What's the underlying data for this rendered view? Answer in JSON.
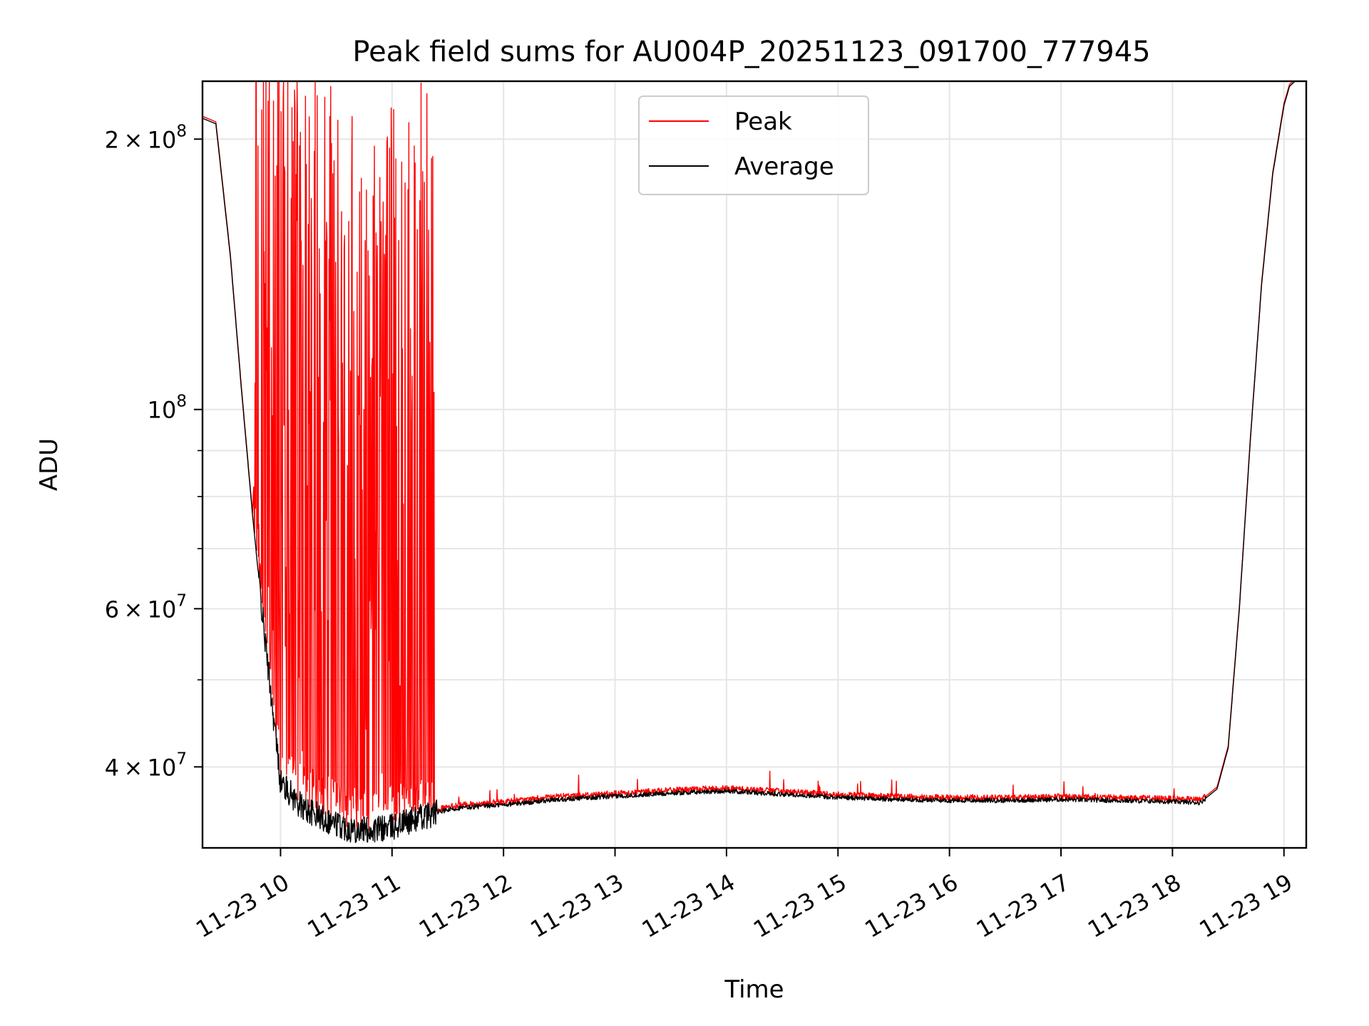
{
  "chart_data": {
    "type": "line",
    "title": "Peak field sums for AU004P_20251123_091700_777945",
    "xlabel": "Time",
    "ylabel": "ADU",
    "yscale": "log",
    "grid": true,
    "legend_position": "top-center",
    "xlim": [
      9.3,
      19.2
    ],
    "ylim": [
      32500000,
      232000000
    ],
    "x_ticks": [
      {
        "value": 10,
        "label": "11-23 10"
      },
      {
        "value": 11,
        "label": "11-23 11"
      },
      {
        "value": 12,
        "label": "11-23 12"
      },
      {
        "value": 13,
        "label": "11-23 13"
      },
      {
        "value": 14,
        "label": "11-23 14"
      },
      {
        "value": 15,
        "label": "11-23 15"
      },
      {
        "value": 16,
        "label": "11-23 16"
      },
      {
        "value": 17,
        "label": "11-23 17"
      },
      {
        "value": 18,
        "label": "11-23 18"
      },
      {
        "value": 19,
        "label": "11-23 19"
      }
    ],
    "y_major_ticks": [
      {
        "value": 40000000,
        "label_mantissa": "4",
        "label_exp": "7"
      },
      {
        "value": 60000000,
        "label_mantissa": "6",
        "label_exp": "7"
      },
      {
        "value": 100000000,
        "label_mantissa": "",
        "label_exp": "8"
      },
      {
        "value": 200000000,
        "label_mantissa": "2",
        "label_exp": "8"
      }
    ],
    "y_minor_ticks": [
      50000000,
      70000000,
      80000000,
      90000000
    ],
    "series": [
      {
        "name": "Peak",
        "color": "#ff0000",
        "x": [
          9.3,
          9.42,
          9.55,
          9.65,
          9.75,
          9.85,
          9.95,
          10.1,
          10.3,
          10.5,
          10.7,
          10.9,
          11.05,
          11.2,
          11.35,
          11.5,
          12.0,
          12.5,
          13.0,
          13.5,
          14.0,
          14.5,
          15.0,
          15.5,
          16.0,
          16.5,
          17.0,
          17.5,
          18.0,
          18.25,
          18.4,
          18.5,
          18.6,
          18.7,
          18.8,
          18.9,
          19.0,
          19.05,
          19.1
        ],
        "values": [
          212000000,
          209000000,
          150000000,
          108000000,
          78000000,
          58000000,
          48000000,
          225000000,
          230000000,
          232000000,
          232000000,
          232000000,
          230000000,
          231000000,
          195000000,
          36000000,
          36400000,
          36900000,
          37300000,
          37600000,
          37900000,
          37500000,
          37200000,
          37000000,
          36800000,
          37100000,
          37000000,
          36800000,
          36700000,
          36900000,
          38200000,
          43000000,
          62000000,
          95000000,
          140000000,
          185000000,
          220000000,
          230000000,
          232000000
        ]
      },
      {
        "name": "Average",
        "color": "#000000",
        "x": [
          9.3,
          9.42,
          9.55,
          9.65,
          9.75,
          9.85,
          9.95,
          10.0,
          10.2,
          10.4,
          10.6,
          10.8,
          11.0,
          11.2,
          11.4,
          11.6,
          12.0,
          12.5,
          13.0,
          13.5,
          14.0,
          14.5,
          15.0,
          15.5,
          16.0,
          16.5,
          17.0,
          17.5,
          18.0,
          18.25,
          18.4,
          18.5,
          18.6,
          18.7,
          18.8,
          18.9,
          19.0,
          19.05,
          19.1
        ],
        "values": [
          211000000,
          208000000,
          148000000,
          105000000,
          76000000,
          57000000,
          44000000,
          38500000,
          36000000,
          35000000,
          34200000,
          34000000,
          34300000,
          35000000,
          35600000,
          36000000,
          36300000,
          36800000,
          37100000,
          37400000,
          37600000,
          37300000,
          37000000,
          36800000,
          36700000,
          36700000,
          36800000,
          36700000,
          36600000,
          36500000,
          37800000,
          42000000,
          60000000,
          93000000,
          138000000,
          183000000,
          218000000,
          229000000,
          232000000
        ]
      }
    ]
  }
}
